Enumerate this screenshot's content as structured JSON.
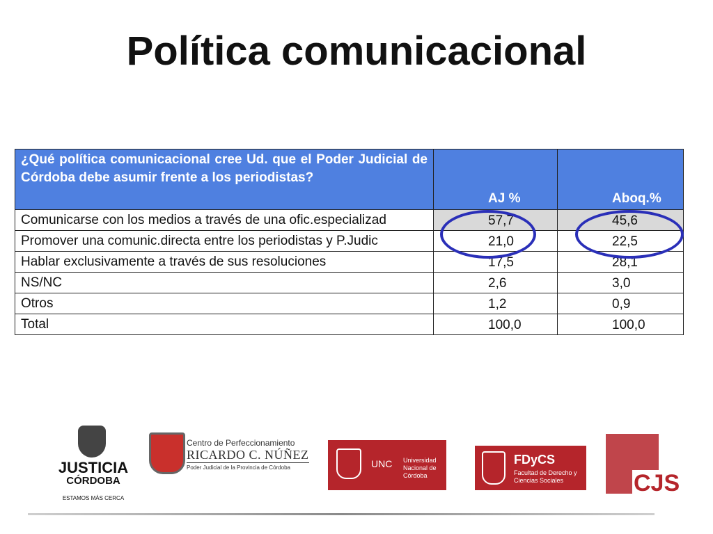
{
  "title": "Política comunicacional",
  "table": {
    "header": {
      "question": "¿Qué política comunicacional  cree Ud. que el Poder Judicial de Córdoba debe asumir frente a los periodistas?",
      "col1": "AJ %",
      "col2": "Aboq.%"
    },
    "rows": [
      {
        "label": "Comunicarse con los medios a través de una ofic.especializad",
        "aj": "57,7",
        "abog": "45,6"
      },
      {
        "label": "Promover una comunic.directa entre los periodistas y P.Judic",
        "aj": "21,0",
        "abog": "22,5"
      },
      {
        "label": "Hablar exclusivamente a través de sus resoluciones",
        "aj": "17,5",
        "abog": "28,1"
      },
      {
        "label": "NS/NC",
        "aj": "2,6",
        "abog": "3,0"
      },
      {
        "label": "Otros",
        "aj": "1,2",
        "abog": "0,9"
      },
      {
        "label": "Total",
        "aj": "100,0",
        "abog": "100,0"
      }
    ]
  },
  "logos": {
    "justicia": {
      "line1": "JUSTICIA",
      "line2": "CÓRDOBA",
      "tagline": "ESTAMOS MÁS CERCA"
    },
    "centro": {
      "line1": "Centro de Perfeccionamiento",
      "line2": "RICARDO C. NÚÑEZ",
      "line3": "Poder Judicial de la Provincia de Córdoba"
    },
    "unc": {
      "abbr": "UNC",
      "name": "Universidad Nacional de Córdoba"
    },
    "fdycs": {
      "abbr": "FDyCS",
      "name": "Facultad de Derecho y Ciencias Sociales"
    },
    "cjs": {
      "abbr": "CJS"
    }
  },
  "colors": {
    "header_bg": "#4f80e0",
    "highlight_ellipse": "#2a2fb8",
    "logo_red": "#b5252b"
  }
}
